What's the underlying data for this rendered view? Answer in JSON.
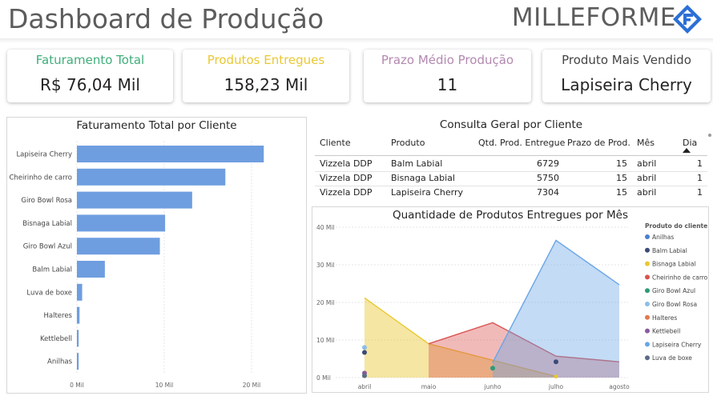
{
  "header": {
    "title": "Dashboard de Produção",
    "brand": "MILLEFORME"
  },
  "kpis": [
    {
      "label": "Faturamento Total",
      "value": "R$ 76,04 Mil",
      "color": "#3fae7a"
    },
    {
      "label": "Produtos Entregues",
      "value": "158,23 Mil",
      "color": "#e9c832"
    },
    {
      "label": "Prazo Médio Produção",
      "value": "11",
      "color": "#b388b0"
    },
    {
      "label": "Produto Mais Vendido",
      "value": "Lapiseira Cherry",
      "color": "#444444"
    }
  ],
  "bar_chart": {
    "title": "Faturamento Total por Cliente",
    "tick_labels": [
      "0 Mil",
      "10 Mil",
      "20 Mil"
    ]
  },
  "table": {
    "title": "Consulta Geral por Cliente",
    "columns": [
      "Cliente",
      "Produto",
      "Qtd. Prod. Entregue",
      "Prazo de Prod.",
      "Mês",
      "Dia"
    ],
    "rows": [
      [
        "Vizzela DDP",
        "Balm Labial",
        "6729",
        "15",
        "abril",
        "1"
      ],
      [
        "Vizzela DDP",
        "Bisnaga Labial",
        "5750",
        "15",
        "abril",
        "1"
      ],
      [
        "Vizzela DDP",
        "Lapiseira Cherry",
        "7304",
        "15",
        "abril",
        "1"
      ]
    ]
  },
  "area_chart": {
    "title": "Quantidade de Produtos Entregues por Mês",
    "legend_title": "Produto do cliente",
    "y_tick_labels": [
      "0 Mil",
      "10 Mil",
      "20 Mil",
      "30 Mil",
      "40 Mil"
    ],
    "x_tick_labels": [
      "abril",
      "maio",
      "junho",
      "julho",
      "agosto"
    ]
  },
  "chart_data": [
    {
      "type": "bar",
      "title": "Faturamento Total por Cliente",
      "categories": [
        "Lapiseira Cherry",
        "Cheirinho de carro",
        "Giro Bowl Rosa",
        "Bisnaga Labial",
        "Giro Bowl Azul",
        "Balm Labial",
        "Luva de boxe",
        "Halteres",
        "Kettlebell",
        "Anilhas"
      ],
      "values": [
        21.4,
        17.0,
        13.2,
        10.1,
        9.5,
        3.2,
        0.6,
        0.3,
        0.2,
        0.2
      ],
      "xlim": [
        0,
        25
      ],
      "color": "#6e9ee0"
    },
    {
      "type": "area",
      "title": "Quantidade de Produtos Entregues por Mês",
      "x": [
        "abril",
        "maio",
        "junho",
        "julho",
        "agosto"
      ],
      "ylim": [
        0,
        40
      ],
      "series": [
        {
          "name": "Anilhas",
          "color": "#4a7fd1",
          "values": [
            null,
            null,
            null,
            null,
            null
          ]
        },
        {
          "name": "Balm Labial",
          "color": "#3b4a75",
          "values": [
            6.7,
            null,
            null,
            4.2,
            null
          ]
        },
        {
          "name": "Bisnaga Labial",
          "color": "#e9c832",
          "values": [
            21.2,
            9.0,
            null,
            0.3,
            null
          ]
        },
        {
          "name": "Cheirinho de carro",
          "color": "#d9534f",
          "values": [
            null,
            9.0,
            14.6,
            5.7,
            4.2
          ]
        },
        {
          "name": "Giro Bowl Azul",
          "color": "#2e9b78",
          "values": [
            null,
            null,
            2.5,
            null,
            null
          ]
        },
        {
          "name": "Giro Bowl Rosa",
          "color": "#8cbde8",
          "values": [
            8.0,
            null,
            null,
            null,
            null
          ]
        },
        {
          "name": "Halteres",
          "color": "#e07a4f",
          "values": [
            null,
            null,
            null,
            null,
            null
          ]
        },
        {
          "name": "Kettlebell",
          "color": "#8a5a9e",
          "values": [
            1.2,
            null,
            null,
            null,
            null
          ]
        },
        {
          "name": "Lapiseira Cherry",
          "color": "#6aa5e6",
          "values": [
            null,
            null,
            4.0,
            36.5,
            24.7
          ]
        },
        {
          "name": "Luva de boxe",
          "color": "#5b6b86",
          "values": [
            0.5,
            null,
            null,
            null,
            null
          ]
        }
      ]
    }
  ]
}
